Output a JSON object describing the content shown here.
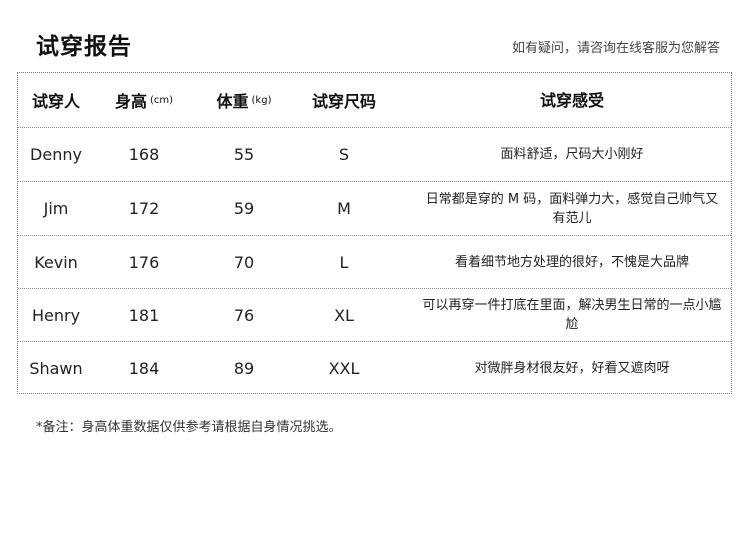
{
  "title": "试穿报告",
  "hint": "如有疑问，请咨询在线客服为您解答",
  "table": {
    "headers": [
      {
        "label": "试穿人",
        "unit": ""
      },
      {
        "label": "身高",
        "unit": "(cm)"
      },
      {
        "label": "体重",
        "unit": "(kg)"
      },
      {
        "label": "试穿尺码",
        "unit": ""
      },
      {
        "label": "试穿感受",
        "unit": ""
      }
    ],
    "rows": [
      {
        "name": "Denny",
        "height": "168",
        "weight": "55",
        "size": "S",
        "feedback": "面料舒适，尺码大小刚好"
      },
      {
        "name": "Jim",
        "height": "172",
        "weight": "59",
        "size": "M",
        "feedback": "日常都是穿的 M 码，面料弹力大，感觉自己帅气又有范儿"
      },
      {
        "name": "Kevin",
        "height": "176",
        "weight": "70",
        "size": "L",
        "feedback": "看着细节地方处理的很好，不愧是大品牌"
      },
      {
        "name": "Henry",
        "height": "181",
        "weight": "76",
        "size": "XL",
        "feedback": "可以再穿一件打底在里面，解决男生日常的一点小尴尬"
      },
      {
        "name": "Shawn",
        "height": "184",
        "weight": "89",
        "size": "XXL",
        "feedback": "对微胖身材很友好，好看又遮肉呀"
      }
    ]
  },
  "note": "*备注：身高体重数据仅供参考请根据自身情况挑选。"
}
